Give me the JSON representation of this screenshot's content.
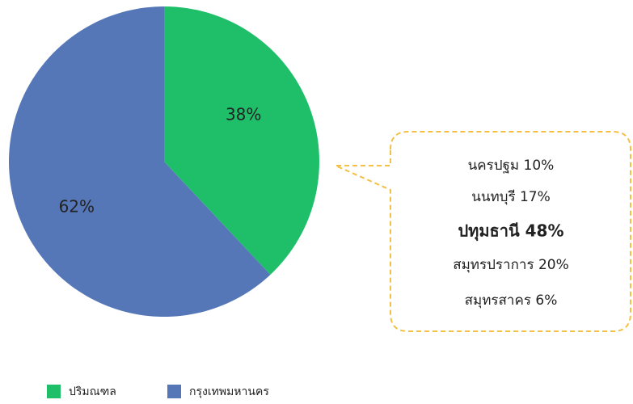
{
  "chart_data": {
    "type": "pie",
    "categories": [
      "ปริมณฑล",
      "กรุงเทพมหานคร"
    ],
    "values": [
      38,
      62
    ],
    "value_labels": [
      "38%",
      "62%"
    ],
    "colors": [
      "#1fbf6a",
      "#5577b8"
    ],
    "annotations": [
      "นครปฐม 10%",
      "นนทบุรี  17%",
      "ปทุมธานี 48%",
      "สมุทรปราการ  20%",
      "สมุทรสาคร 6%"
    ],
    "legend": "bottom-left"
  }
}
